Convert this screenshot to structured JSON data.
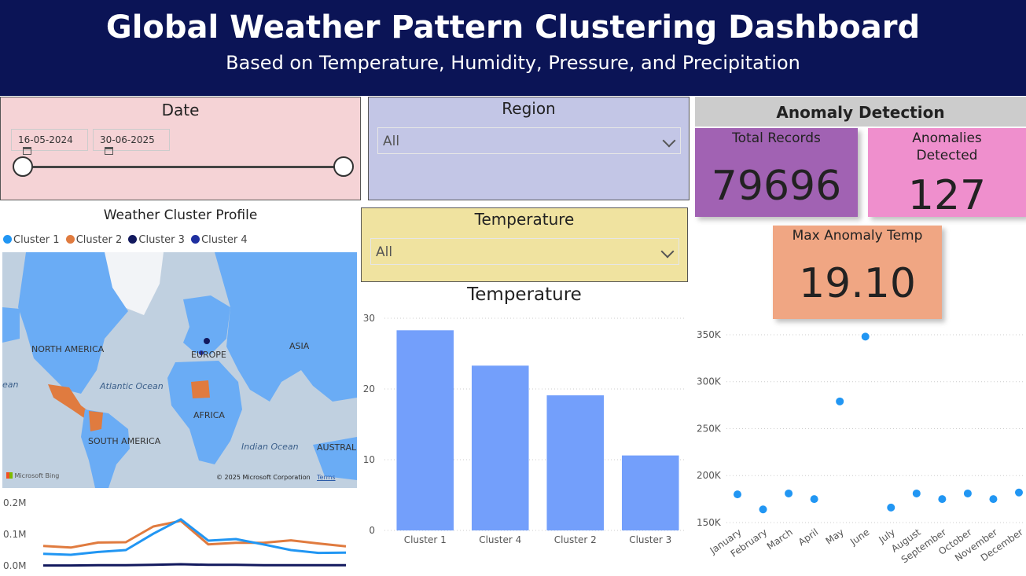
{
  "header": {
    "title": "Global Weather Pattern Clustering Dashboard",
    "subtitle": "Based on Temperature, Humidity, Pressure, and Precipitation"
  },
  "date_filter": {
    "title": "Date",
    "start": "16-05-2024",
    "end": "30-06-2025"
  },
  "region_filter": {
    "title": "Region",
    "value": "All"
  },
  "temperature_filter": {
    "title": "Temperature",
    "value": "All"
  },
  "anomaly": {
    "title": "Anomaly Detection",
    "total_label": "Total Records",
    "total_value": "79696",
    "detected_label_1": "Anomalies",
    "detected_label_2": "Detected",
    "detected_value": "127",
    "max_label": "Max Anomaly Temp",
    "max_value": "19.10"
  },
  "map": {
    "title": "Weather Cluster Profile",
    "legend": [
      {
        "name": "Cluster 1",
        "color": "#2196f3"
      },
      {
        "name": "Cluster 2",
        "color": "#e07b3f"
      },
      {
        "name": "Cluster 3",
        "color": "#12195e"
      },
      {
        "name": "Cluster 4",
        "color": "#1f2fa0"
      }
    ],
    "labels": {
      "north_america": "NORTH AMERICA",
      "europe": "EUROPE",
      "asia": "ASIA",
      "atlantic": "Atlantic Ocean",
      "africa": "AFRICA",
      "south_america": "SOUTH AMERICA",
      "indian": "Indian Ocean",
      "australia": "AUSTRALI",
      "ocean_left": "ean",
      "bing": "Microsoft Bing",
      "copyright": "© 2025 Microsoft Corporation",
      "terms": "Terms"
    },
    "colors": {
      "water": "#c0d0e0",
      "land": "#6aacf5",
      "cluster2": "#e07b3f"
    }
  },
  "chart_data": [
    {
      "type": "line",
      "title": "",
      "ylim": [
        0,
        0.2
      ],
      "y_ticks": [
        "0.0M",
        "0.1M",
        "0.2M"
      ],
      "series": [
        {
          "color": "#e07b3f",
          "values": [
            0.063,
            0.058,
            0.074,
            0.075,
            0.125,
            0.143,
            0.068,
            0.073,
            0.073,
            0.081,
            0.071,
            0.062
          ]
        },
        {
          "color": "#2196f3",
          "values": [
            0.038,
            0.035,
            0.044,
            0.05,
            0.102,
            0.148,
            0.08,
            0.085,
            0.068,
            0.05,
            0.041,
            0.042
          ]
        },
        {
          "color": "#12195e",
          "values": [
            0.001,
            0.001,
            0.002,
            0.002,
            0.003,
            0.005,
            0.003,
            0.003,
            0.002,
            0.002,
            0.002,
            0.002
          ]
        }
      ]
    },
    {
      "type": "bar",
      "title": "Temperature",
      "categories": [
        "Cluster 1",
        "Cluster 4",
        "Cluster 2",
        "Cluster 3"
      ],
      "values": [
        28.3,
        23.3,
        19.1,
        10.6
      ],
      "ylim": [
        0,
        30
      ],
      "y_ticks": [
        0,
        10,
        20,
        30
      ],
      "color": "#739ffb"
    },
    {
      "type": "scatter",
      "title": "",
      "categories": [
        "January",
        "February",
        "March",
        "April",
        "May",
        "June",
        "July",
        "August",
        "September",
        "October",
        "November",
        "December"
      ],
      "values": [
        180000,
        164000,
        181000,
        175000,
        279000,
        348000,
        166000,
        181000,
        175000,
        181000,
        175000,
        182000
      ],
      "ylim": [
        150000,
        355000
      ],
      "y_ticks": [
        "150K",
        "200K",
        "250K",
        "300K",
        "350K"
      ],
      "y_tick_values": [
        150000,
        200000,
        250000,
        300000,
        350000
      ],
      "color": "#2196f3"
    }
  ]
}
